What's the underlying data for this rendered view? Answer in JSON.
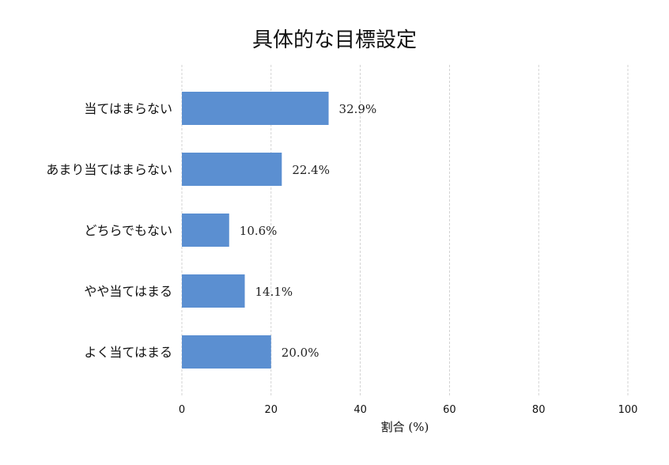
{
  "chart_data": {
    "type": "bar",
    "orientation": "horizontal",
    "title": "具体的な目標設定",
    "xlabel": "割合 (%)",
    "ylabel": "",
    "categories": [
      "当てはまらない",
      "あまり当てはまらない",
      "どちらでもない",
      "やや当てはまる",
      "よく当てはまる"
    ],
    "values": [
      32.9,
      22.4,
      10.6,
      14.1,
      20.0
    ],
    "value_labels": [
      "32.9%",
      "22.4%",
      "10.6%",
      "14.1%",
      "20.0%"
    ],
    "xlim": [
      0,
      100
    ],
    "xticks": [
      0,
      20,
      40,
      60,
      80,
      100
    ],
    "grid": "vertical-dashed",
    "bar_color": "#5b8fd1"
  }
}
